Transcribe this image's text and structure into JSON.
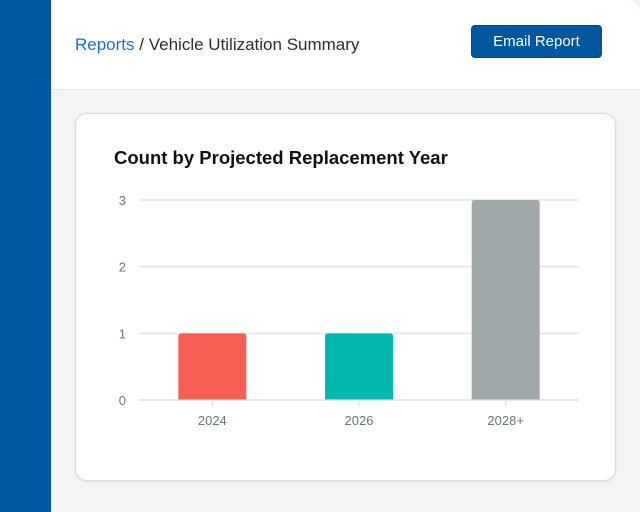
{
  "breadcrumb": {
    "parent": "Reports",
    "separator": "/",
    "current": "Vehicle Utilization Summary"
  },
  "toolbar": {
    "email_label": "Email Report"
  },
  "colors": {
    "sidebar": "#0057a0",
    "accent": "#0057a0",
    "link": "#1473c9"
  },
  "chart_data": {
    "type": "bar",
    "title": "Count by Projected Replacement Year",
    "categories": [
      "2024",
      "2026",
      "2028+"
    ],
    "values": [
      1,
      1,
      3
    ],
    "colors": [
      "#f75f55",
      "#00b8ad",
      "#a1a8aa"
    ],
    "ylim": [
      0,
      3
    ],
    "yticks": [
      0,
      1,
      2,
      3
    ],
    "grid": true,
    "xlabel": "",
    "ylabel": ""
  }
}
